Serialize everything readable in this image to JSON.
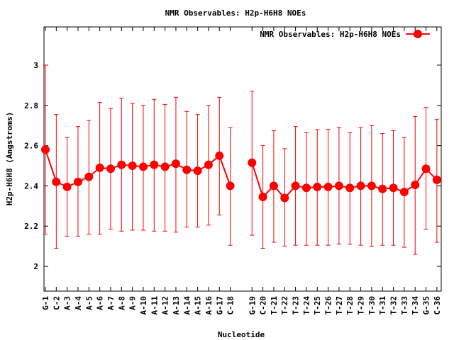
{
  "chart_data": {
    "type": "line",
    "title": "NMR Observables: H2p-H6H8 NOEs",
    "xlabel": "Nucleotide",
    "ylabel": "H2p-H6H8 (Angstroms)",
    "ylim": [
      1.877,
      3.19
    ],
    "yticks": [
      "2",
      "2.2",
      "2.4",
      "2.6",
      "2.8",
      "3"
    ],
    "legend": {
      "label": "NMR Observables: H2p-H6H8 NOEs",
      "placement": "top-right"
    },
    "color": "#ff0000",
    "series": [
      {
        "name": "NMR Observables: H2p-H6H8 NOEs",
        "points": [
          {
            "label": "G-1",
            "x": 1,
            "y": 2.58,
            "lo": 2.16,
            "hi": 3.0
          },
          {
            "label": "C-2",
            "x": 2,
            "y": 2.42,
            "lo": 2.09,
            "hi": 2.755
          },
          {
            "label": "A-3",
            "x": 3,
            "y": 2.395,
            "lo": 2.15,
            "hi": 2.64
          },
          {
            "label": "A-4",
            "x": 4,
            "y": 2.42,
            "lo": 2.15,
            "hi": 2.695
          },
          {
            "label": "A-5",
            "x": 5,
            "y": 2.445,
            "lo": 2.16,
            "hi": 2.725
          },
          {
            "label": "A-6",
            "x": 6,
            "y": 2.49,
            "lo": 2.16,
            "hi": 2.815
          },
          {
            "label": "A-7",
            "x": 7,
            "y": 2.485,
            "lo": 2.185,
            "hi": 2.785
          },
          {
            "label": "A-8",
            "x": 8,
            "y": 2.505,
            "lo": 2.175,
            "hi": 2.835
          },
          {
            "label": "A-9",
            "x": 9,
            "y": 2.5,
            "lo": 2.18,
            "hi": 2.81
          },
          {
            "label": "A-10",
            "x": 10,
            "y": 2.495,
            "lo": 2.18,
            "hi": 2.8
          },
          {
            "label": "A-11",
            "x": 11,
            "y": 2.505,
            "lo": 2.175,
            "hi": 2.83
          },
          {
            "label": "A-12",
            "x": 12,
            "y": 2.495,
            "lo": 2.175,
            "hi": 2.805
          },
          {
            "label": "A-13",
            "x": 13,
            "y": 2.51,
            "lo": 2.17,
            "hi": 2.84
          },
          {
            "label": "A-14",
            "x": 14,
            "y": 2.48,
            "lo": 2.195,
            "hi": 2.77
          },
          {
            "label": "A-15",
            "x": 15,
            "y": 2.475,
            "lo": 2.195,
            "hi": 2.755
          },
          {
            "label": "A-16",
            "x": 16,
            "y": 2.505,
            "lo": 2.205,
            "hi": 2.8
          },
          {
            "label": "G-17",
            "x": 17,
            "y": 2.55,
            "lo": 2.255,
            "hi": 2.84
          },
          {
            "label": "C-18",
            "x": 18,
            "y": 2.4,
            "lo": 2.105,
            "hi": 2.69
          },
          {
            "label": "G-19",
            "x": 20,
            "y": 2.515,
            "lo": 2.155,
            "hi": 2.87
          },
          {
            "label": "C-20",
            "x": 21,
            "y": 2.345,
            "lo": 2.09,
            "hi": 2.6
          },
          {
            "label": "T-21",
            "x": 22,
            "y": 2.4,
            "lo": 2.12,
            "hi": 2.675
          },
          {
            "label": "T-22",
            "x": 23,
            "y": 2.34,
            "lo": 2.1,
            "hi": 2.585
          },
          {
            "label": "T-23",
            "x": 24,
            "y": 2.4,
            "lo": 2.105,
            "hi": 2.695
          },
          {
            "label": "T-24",
            "x": 25,
            "y": 2.39,
            "lo": 2.105,
            "hi": 2.665
          },
          {
            "label": "T-25",
            "x": 26,
            "y": 2.395,
            "lo": 2.105,
            "hi": 2.68
          },
          {
            "label": "T-26",
            "x": 27,
            "y": 2.395,
            "lo": 2.105,
            "hi": 2.68
          },
          {
            "label": "T-27",
            "x": 28,
            "y": 2.4,
            "lo": 2.11,
            "hi": 2.69
          },
          {
            "label": "T-28",
            "x": 29,
            "y": 2.39,
            "lo": 2.11,
            "hi": 2.665
          },
          {
            "label": "T-29",
            "x": 30,
            "y": 2.4,
            "lo": 2.105,
            "hi": 2.69
          },
          {
            "label": "T-30",
            "x": 31,
            "y": 2.4,
            "lo": 2.1,
            "hi": 2.7
          },
          {
            "label": "T-31",
            "x": 32,
            "y": 2.385,
            "lo": 2.105,
            "hi": 2.66
          },
          {
            "label": "T-32",
            "x": 33,
            "y": 2.39,
            "lo": 2.105,
            "hi": 2.675
          },
          {
            "label": "T-33",
            "x": 34,
            "y": 2.37,
            "lo": 2.095,
            "hi": 2.64
          },
          {
            "label": "T-34",
            "x": 35,
            "y": 2.405,
            "lo": 2.06,
            "hi": 2.745
          },
          {
            "label": "G-35",
            "x": 36,
            "y": 2.485,
            "lo": 2.185,
            "hi": 2.79
          },
          {
            "label": "C-36",
            "x": 37,
            "y": 2.43,
            "lo": 2.12,
            "hi": 2.73
          }
        ]
      }
    ],
    "xlim": [
      0.87,
      37.4
    ]
  }
}
